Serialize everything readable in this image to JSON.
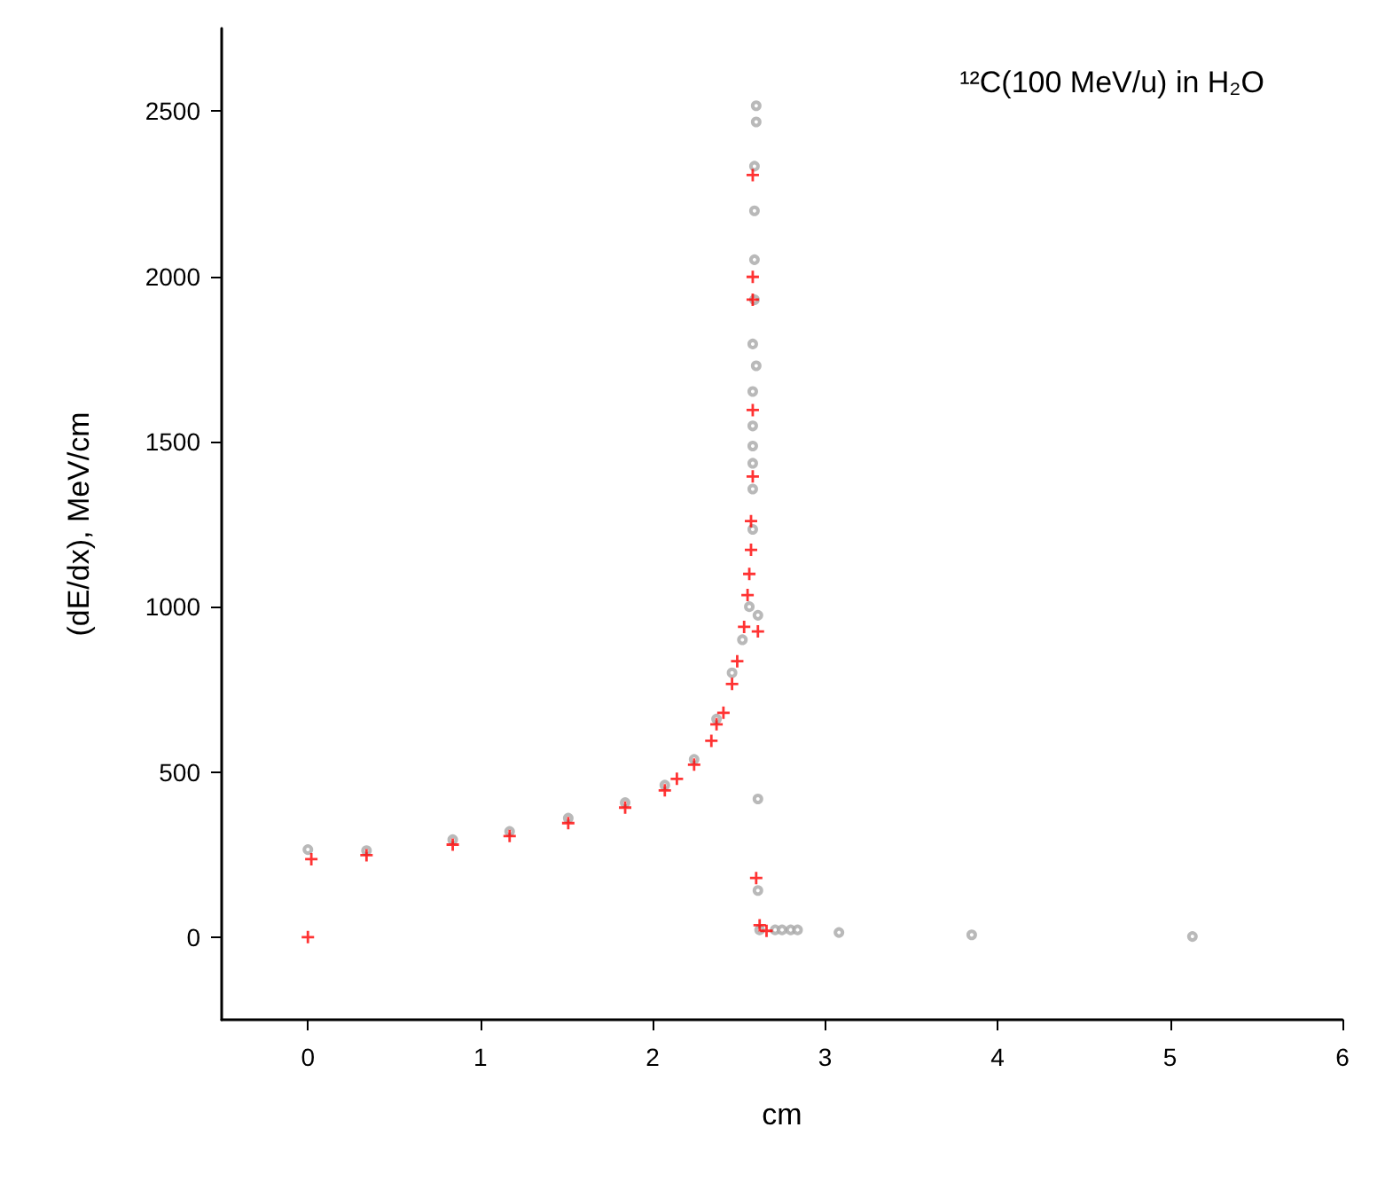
{
  "chart_data": {
    "type": "scatter",
    "xlabel": "cm",
    "ylabel": "(dE/dx), MeV/cm",
    "annotations": [
      "¹²C(100 MeV/u) in H₂O"
    ],
    "xlim": [
      -0.5,
      6
    ],
    "xticks": [
      0,
      1,
      2,
      3,
      4,
      5,
      6
    ],
    "ylim": [
      -250,
      2750
    ],
    "yticks": [
      0,
      500,
      1000,
      1500,
      2000,
      2500
    ],
    "grid": false,
    "series": [
      {
        "color": "#a8a8a8",
        "marker": "circle",
        "x": [
          0,
          0.34,
          0.84,
          1.17,
          1.51,
          1.84,
          2.07,
          2.24,
          2.37,
          2.46,
          2.52,
          2.56,
          2.58,
          2.58,
          2.58,
          2.58,
          2.58,
          2.58,
          2.58,
          2.59,
          2.59,
          2.59,
          2.59,
          2.6,
          2.6,
          2.6,
          2.61,
          2.61,
          2.61,
          2.62,
          2.71,
          2.75,
          2.8,
          2.84,
          3.08,
          3.85,
          5.13
        ],
        "values": [
          265,
          262,
          295,
          320,
          360,
          407,
          460,
          538,
          660,
          800,
          900,
          1000,
          1234,
          1356,
          1434,
          1486,
          1547,
          1651,
          1795,
          1929,
          2050,
          2198,
          2333,
          2467,
          2516,
          1729,
          974,
          418,
          141,
          22,
          22,
          22,
          22,
          22,
          14,
          7,
          2
        ]
      },
      {
        "color": "#ff0000",
        "marker": "cross",
        "x": [
          0,
          0.02,
          0.34,
          0.84,
          1.17,
          1.51,
          1.84,
          2.07,
          2.14,
          2.24,
          2.34,
          2.37,
          2.41,
          2.46,
          2.49,
          2.53,
          2.55,
          2.56,
          2.57,
          2.57,
          2.58,
          2.58,
          2.58,
          2.58,
          2.58,
          2.61,
          2.6,
          2.62,
          2.66
        ],
        "values": [
          0,
          236,
          248,
          280,
          306,
          345,
          392,
          444,
          479,
          522,
          594,
          644,
          679,
          766,
          835,
          939,
          1035,
          1099,
          1172,
          1259,
          1394,
          1595,
          1929,
          1998,
          2306,
          925,
          179,
          36,
          19
        ]
      }
    ]
  }
}
